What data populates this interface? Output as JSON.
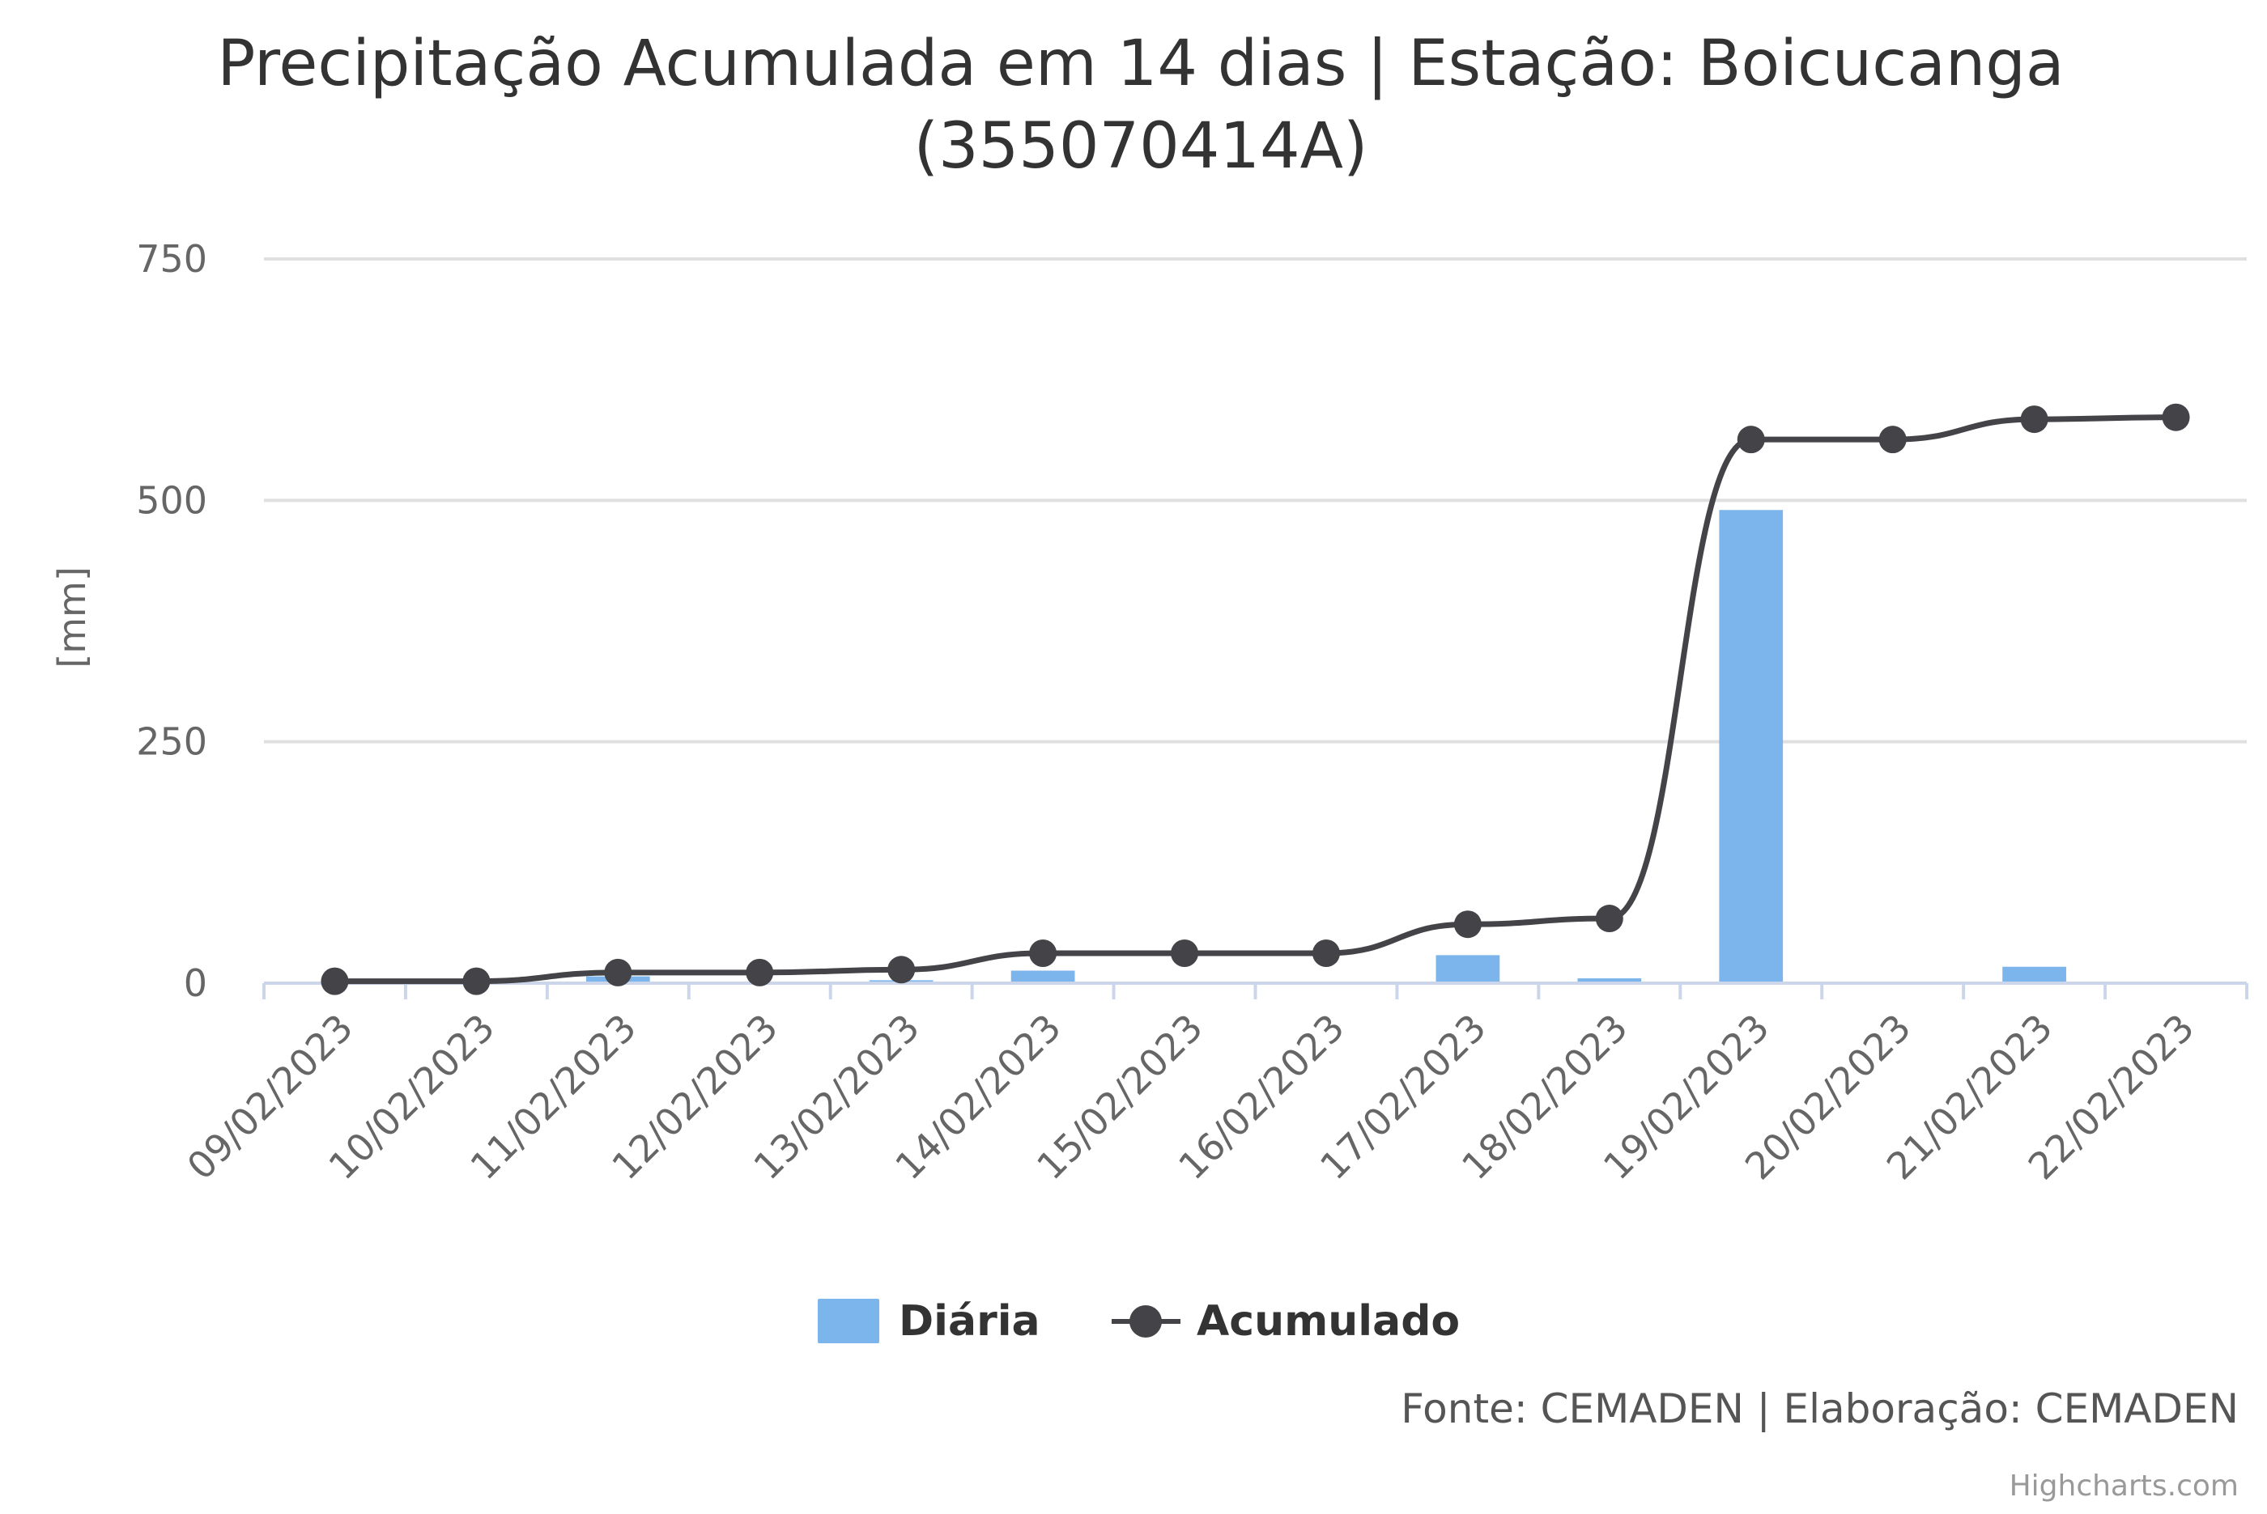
{
  "chart_data": {
    "type": "bar",
    "title": "Precipitação Acumulada em 14 dias | Estação: Boicucanga (355070414A)",
    "title_lines": [
      "Precipitação Acumulada em 14 dias | Estação: Boicucanga",
      "(355070414A)"
    ],
    "ylabel": "[mm]",
    "xlabel": "",
    "ylim": [
      0,
      750
    ],
    "yticks": [
      0,
      250,
      500,
      750
    ],
    "grid": true,
    "legend_position": "bottom-center",
    "categories": [
      "09/02/2023",
      "10/02/2023",
      "11/02/2023",
      "12/02/2023",
      "13/02/2023",
      "14/02/2023",
      "15/02/2023",
      "16/02/2023",
      "17/02/2023",
      "18/02/2023",
      "19/02/2023",
      "20/02/2023",
      "21/02/2023",
      "22/02/2023"
    ],
    "series": [
      {
        "name": "Diária",
        "type": "bar",
        "color": "#7cb5ec",
        "values": [
          0,
          0,
          7,
          0,
          3,
          13,
          0,
          0,
          29,
          5,
          490,
          0,
          17,
          0
        ]
      },
      {
        "name": "Acumulado",
        "type": "line",
        "color": "#434348",
        "values": [
          2,
          2,
          11,
          11,
          14,
          31,
          31,
          31,
          61,
          67,
          563,
          563,
          584,
          586
        ]
      }
    ]
  },
  "credits": {
    "source": "Fonte: CEMADEN | Elaboração: CEMADEN",
    "highcharts": "Highcharts.com"
  }
}
